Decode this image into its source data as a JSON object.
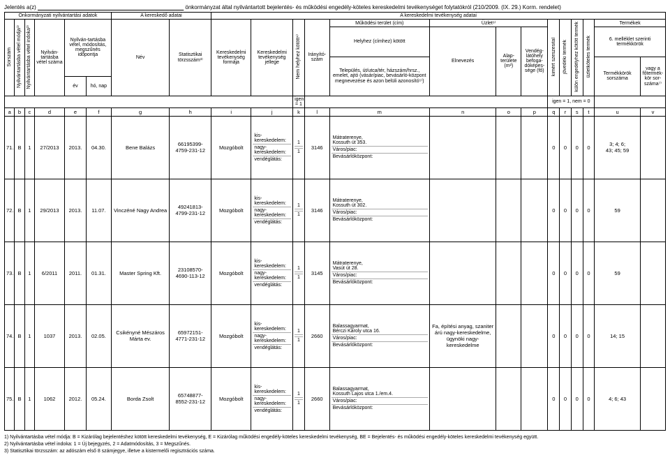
{
  "title_prefix": "Jelentés a(z)",
  "title_underline": "_______________________________________________",
  "title_suffix": "önkormányzat által nyilvántartott bejelentés- és működési engedély-köteles kereskedelmi tevékenységet folytatókról (210/2009. (IX. 29.) Korm. rendelet)",
  "header": {
    "group1": "Önkormányzati nyilvántartási adatok",
    "group2": "A kereskedő adatai",
    "group3": "A kereskedelmi tevékenység adatai",
    "sorszam": "Sorszám",
    "mod": "Nyilvántartásba vétel módja¹⁾",
    "index": "Nyilvántartásba vétel indoka²⁾",
    "nyilv_szam": "Nyilván-tartásba vétel száma",
    "idopont": "Nyilván-tartásba vétel, módosítás, megszűnés időpontja",
    "ev": "év",
    "honap": "hó, nap",
    "nev": "Név",
    "torzsszam": "Statisztikai törzsszám³⁾",
    "forma": "Kereskedelmi tevékenység formája",
    "jelleg": "Kereskedelmi tevékenység jellege",
    "nem_helyhez": "Nem helyhez kötött⁴⁾",
    "iranyito": "Irányító-szám",
    "mukodes_cim": "Működési terület (cím)",
    "helyhez": "Helyhez (címhez) kötött",
    "telepules": "Település, út/utca/tér, házszám/hrsz., emelet, ajtó (vásár/piac, bevásárló-központ megnevezése és azon belüli azonosító⁵⁾)",
    "uzlet": "Üzlet⁶⁾",
    "elnevezes": "Elnevezés",
    "alapterulet": "Alap-területe (m²)",
    "vendeglato": "Vendég-látóhely befoga-dóképes-sége (fő)",
    "kimert": "kimért szeszesital",
    "jovedeki": "jövedéki termék",
    "kulon_eng": "külön engedélyhez kötött termék",
    "uzletkoteles": "üzletköteles termék",
    "termekek": "Termékek",
    "melleklet6": "6. melléklet szerinti termékkörök",
    "termekkor_sor": "Termékkörök sorszáma",
    "fotermek": "vagy a főtermék-kör sor-száma⁷⁾",
    "igen1": "igen = 1",
    "igen1nem0": "igen = 1, nem = 0"
  },
  "letters": [
    "a",
    "b",
    "c",
    "d",
    "e",
    "f",
    "g",
    "h",
    "i",
    "j",
    "k",
    "l",
    "m",
    "n",
    "o",
    "p",
    "q",
    "r",
    "s",
    "t",
    "u",
    "v"
  ],
  "sub_labels": {
    "kis": "kis-kereskedelem:",
    "nagy": "nagy-kereskedelem:",
    "vendeg": "vendéglátás:"
  },
  "addr_labels": {
    "varospiac": "Város/piac:",
    "bevasarlo": "Bevásárlóközpont:"
  },
  "rows": [
    {
      "sorszam": "71.",
      "mod": "B",
      "index": "1",
      "nyilv": "27/2013",
      "ev": "2013.",
      "honap": "04.30.",
      "nev": "Bene Balázs",
      "torzsszam": "66195399-4759-231-12",
      "forma": "Mozgóbolt",
      "jelleg_val": "1",
      "kis_v": "1",
      "nagy_v": "",
      "iranyito": "1",
      "irsz": "3146",
      "telep1": "Mátraterenye,",
      "telep2": "Kossuth út 353.",
      "q": "0",
      "r": "0",
      "s": "0",
      "t": "0",
      "u": "3; 4; 6;\n43; 45; 59",
      "v": ""
    },
    {
      "sorszam": "72.",
      "mod": "B",
      "index": "1",
      "nyilv": "29/2013",
      "ev": "2013.",
      "honap": "11.07.",
      "nev": "Vinczéné Nagy Andrea",
      "torzsszam": "49241813-4799-231-12",
      "forma": "Mozgóbolt",
      "jelleg_val": "1",
      "kis_v": "1",
      "nagy_v": "",
      "iranyito": "1",
      "irsz": "3146",
      "telep1": "Mátraterenye,",
      "telep2": "Kossuth út 302.",
      "q": "0",
      "r": "0",
      "s": "0",
      "t": "0",
      "u": "59",
      "v": ""
    },
    {
      "sorszam": "73.",
      "mod": "B",
      "index": "1",
      "nyilv": "6/2011",
      "ev": "2011.",
      "honap": "01.31.",
      "nev": "Master Spring Kft.",
      "torzsszam": "23108570-4690-113-12",
      "forma": "Mozgóbolt",
      "jelleg_val": "1",
      "kis_v": "1",
      "nagy_v": "",
      "iranyito": "1",
      "irsz": "3145",
      "telep1": "Mátraterenye,",
      "telep2": "Vasút út 28.",
      "q": "0",
      "r": "0",
      "s": "0",
      "t": "0",
      "u": "59",
      "v": ""
    },
    {
      "sorszam": "74.",
      "mod": "B",
      "index": "1",
      "nyilv": "1037",
      "ev": "2013.",
      "honap": "02.05.",
      "nev": "Csikényné Mészáros Márta ev.",
      "torzsszam": "65972151-4771-231-12",
      "forma": "Mozgóbolt",
      "jelleg_val": "1",
      "kis_v": "1",
      "nagy_v": "",
      "iranyito": "1",
      "irsz": "2660",
      "telep1": "Balassagyarmat,",
      "telep2": "Bérczi Károly utca 16.",
      "elnevezes": "Fa, építési anyag, szaniter árú nagy-kereskedelme, ügynöki nagy-kereskedelme",
      "q": "0",
      "r": "0",
      "s": "0",
      "t": "0",
      "u": "14; 15",
      "v": ""
    },
    {
      "sorszam": "75.",
      "mod": "B",
      "index": "1",
      "nyilv": "1062",
      "ev": "2012.",
      "honap": "05.24.",
      "nev": "Borda Zsolt",
      "torzsszam": "65748877-8552-231-12",
      "forma": "Mozgóbolt",
      "jelleg_val": "1",
      "kis_v": "1",
      "nagy_v": "",
      "iranyito": "1",
      "irsz": "2660",
      "telep1": "Balassagyarmat,",
      "telep2": "Kossuth Lajos utca 1./em.4.",
      "q": "0",
      "r": "0",
      "s": "0",
      "t": "0",
      "u": "4; 6; 43",
      "v": ""
    }
  ],
  "footnotes": [
    "1) Nyilvántartásba vétel módja: B = Kizárólag bejelentéshez kötött kereskedelmi tevékenység, E = Kizárólag működési engedély-köteles kereskedelmi tevékenység, BE = Bejelentés- és működési engedély-köteles kereskedelmi tevékenység együtt.",
    "2) Nyilvántartásba vétel indoka: 1 = Új bejegyzés, 2 = Adatmódosítás, 3 = Megszűnés.",
    "3) Statisztikai törzsszám: az adószám első 8 számjegye, illetve a kistermelői regisztrációs száma."
  ]
}
